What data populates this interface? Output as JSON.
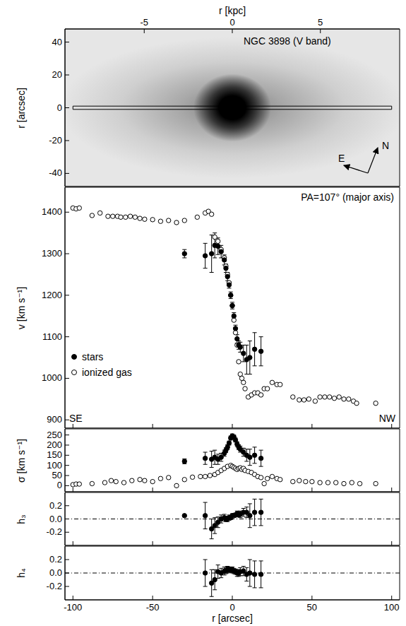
{
  "chart_data": [
    {
      "type": "image",
      "title": "NGC 3898 (V band)",
      "y_label": "r [arcsec]",
      "x2_label": "r [kpc]",
      "xlim": [
        -105,
        105
      ],
      "x2lim": [
        -9.5,
        9.5
      ],
      "x2ticks": [
        -5,
        0,
        5
      ],
      "ylim": [
        -48,
        48
      ],
      "yticks": [
        -40,
        -20,
        0,
        20,
        40
      ],
      "slit": {
        "x": [
          -100,
          100
        ],
        "y": [
          -1,
          1
        ]
      },
      "annotations": [
        "N",
        "E"
      ]
    },
    {
      "type": "scatter",
      "y_label": "v [km s⁻¹]",
      "annotations": [
        "PA=107° (major axis)",
        "SE",
        "NW"
      ],
      "xlim": [
        -105,
        105
      ],
      "xticks": [
        -100,
        -50,
        0,
        50,
        100
      ],
      "ylim": [
        880,
        1460
      ],
      "yticks": [
        900,
        1000,
        1100,
        1200,
        1300,
        1400
      ],
      "tick_labels": "y",
      "legend": "lower left",
      "series": [
        {
          "name": "stars",
          "marker": "filled_circle",
          "color": "#000000",
          "x": [
            -30,
            -17,
            -13,
            -11,
            -9,
            -7,
            -5,
            -4,
            -3,
            -2,
            -1,
            0,
            1,
            2,
            3,
            4,
            5,
            7,
            9,
            11,
            14,
            18
          ],
          "values": [
            1300,
            1295,
            1300,
            1320,
            1318,
            1305,
            1285,
            1265,
            1245,
            1225,
            1200,
            1175,
            1150,
            1120,
            1095,
            1080,
            1075,
            1060,
            1045,
            1050,
            1070,
            1065
          ],
          "errors": [
            10,
            30,
            45,
            30,
            20,
            15,
            12,
            10,
            10,
            8,
            8,
            8,
            8,
            8,
            10,
            10,
            12,
            20,
            35,
            40,
            40,
            35
          ]
        },
        {
          "name": "ionized gas",
          "marker": "open_circle",
          "color": "#000000",
          "x": [
            -100,
            -98,
            -96,
            -88,
            -83,
            -78,
            -75,
            -72,
            -70,
            -67,
            -64,
            -61,
            -58,
            -55,
            -50,
            -45,
            -40,
            -35,
            -30,
            -22,
            -17,
            -15,
            -13,
            -11,
            -9,
            -7,
            -5,
            -4,
            -3,
            -2,
            -1,
            0,
            1,
            2,
            3,
            4,
            5,
            6,
            7,
            8,
            10,
            12,
            14,
            16,
            18,
            20,
            22,
            25,
            28,
            30,
            38,
            42,
            45,
            48,
            52,
            55,
            58,
            61,
            64,
            67,
            70,
            73,
            76,
            78,
            90
          ],
          "values": [
            1410,
            1408,
            1410,
            1392,
            1398,
            1390,
            1390,
            1390,
            1388,
            1388,
            1390,
            1388,
            1385,
            1383,
            1382,
            1378,
            1380,
            1375,
            1380,
            1388,
            1398,
            1402,
            1395,
            1340,
            1330,
            1310,
            1290,
            1270,
            1250,
            1230,
            1200,
            1175,
            1140,
            1110,
            1080,
            1040,
            1010,
            1000,
            990,
            975,
            955,
            960,
            965,
            965,
            960,
            975,
            975,
            990,
            985,
            985,
            955,
            948,
            948,
            950,
            945,
            955,
            955,
            955,
            952,
            955,
            950,
            950,
            945,
            940,
            940
          ]
        }
      ]
    },
    {
      "type": "scatter",
      "y_label": "σ [km s⁻¹]",
      "xlim": [
        -105,
        105
      ],
      "xticks": [
        -100,
        -50,
        0,
        50,
        100
      ],
      "ylim": [
        -30,
        280
      ],
      "yticks": [
        0,
        50,
        100,
        150,
        200,
        250
      ],
      "tick_labels": "y",
      "series": [
        {
          "name": "stars",
          "marker": "filled_circle",
          "color": "#000000",
          "x": [
            -30,
            -17,
            -13,
            -11,
            -9,
            -7,
            -5,
            -4,
            -3,
            -2,
            -1,
            0,
            1,
            2,
            3,
            4,
            5,
            7,
            9,
            11,
            14,
            18
          ],
          "values": [
            120,
            135,
            130,
            140,
            130,
            140,
            160,
            175,
            190,
            210,
            235,
            245,
            240,
            225,
            205,
            190,
            180,
            165,
            150,
            140,
            150,
            135
          ],
          "errors": [
            12,
            30,
            40,
            35,
            25,
            20,
            15,
            12,
            12,
            10,
            10,
            10,
            10,
            10,
            12,
            12,
            15,
            20,
            30,
            40,
            40,
            40
          ]
        },
        {
          "name": "ionized gas",
          "marker": "open_circle",
          "color": "#000000",
          "x": [
            -100,
            -98,
            -96,
            -88,
            -80,
            -76,
            -73,
            -68,
            -63,
            -58,
            -55,
            -50,
            -45,
            -40,
            -35,
            -30,
            -25,
            -20,
            -17,
            -14,
            -11,
            -9,
            -7,
            -5,
            -3,
            -1,
            0,
            1,
            2,
            3,
            4,
            5,
            6,
            7,
            8,
            10,
            12,
            14,
            16,
            18,
            20,
            22,
            25,
            28,
            30,
            38,
            42,
            46,
            50,
            55,
            60,
            65,
            70,
            75,
            80,
            90
          ],
          "values": [
            5,
            8,
            8,
            10,
            15,
            25,
            20,
            15,
            25,
            30,
            25,
            20,
            35,
            40,
            0,
            30,
            42,
            45,
            45,
            50,
            55,
            65,
            75,
            85,
            95,
            100,
            95,
            90,
            85,
            80,
            85,
            88,
            80,
            85,
            75,
            70,
            65,
            55,
            45,
            40,
            10,
            35,
            45,
            35,
            30,
            20,
            25,
            20,
            20,
            15,
            15,
            15,
            10,
            15,
            10,
            10
          ]
        }
      ]
    },
    {
      "type": "scatter",
      "y_label": "h₃",
      "xlim": [
        -105,
        105
      ],
      "xticks": [
        -100,
        -50,
        0,
        50,
        100
      ],
      "ylim": [
        -0.4,
        0.4
      ],
      "yticks": [
        -0.2,
        {
          "value": 0,
          "label": "0.0"
        },
        0.2
      ],
      "tick_labels": "y",
      "reference_y": 0,
      "line_style": "dashdot",
      "series": [
        {
          "name": "stars",
          "marker": "filled_circle",
          "color": "#000000",
          "x": [
            -30,
            -17,
            -13,
            -11,
            -9,
            -7,
            -5,
            -4,
            -3,
            -2,
            -1,
            0,
            1,
            2,
            3,
            4,
            5,
            7,
            9,
            11,
            14,
            18
          ],
          "values": [
            0.05,
            0.05,
            -0.15,
            -0.1,
            -0.05,
            0.0,
            0.02,
            0.0,
            0.0,
            0.02,
            0.02,
            0.05,
            0.05,
            0.06,
            0.08,
            0.07,
            0.07,
            0.1,
            0.1,
            0.05,
            0.1,
            0.1
          ],
          "errors": [
            0.01,
            0.2,
            0.15,
            0.12,
            0.08,
            0.06,
            0.05,
            0.04,
            0.04,
            0.04,
            0.03,
            0.03,
            0.03,
            0.03,
            0.04,
            0.04,
            0.05,
            0.06,
            0.08,
            0.18,
            0.2,
            0.2
          ]
        }
      ]
    },
    {
      "type": "scatter",
      "y_label": "h₄",
      "x_label": "r [arcsec]",
      "xlim": [
        -105,
        105
      ],
      "xticks": [
        -100,
        -50,
        0,
        50,
        100
      ],
      "ylim": [
        -0.4,
        0.4
      ],
      "yticks": [
        -0.2,
        {
          "value": 0,
          "label": "0.0"
        },
        0.2
      ],
      "reference_y": 0,
      "line_style": "dashdot",
      "series": [
        {
          "name": "stars",
          "marker": "filled_circle",
          "color": "#000000",
          "x": [
            -17,
            -13,
            -11,
            -9,
            -7,
            -5,
            -4,
            -3,
            -2,
            -1,
            0,
            1,
            2,
            3,
            4,
            5,
            7,
            9,
            11,
            14,
            18
          ],
          "values": [
            0.0,
            -0.15,
            -0.1,
            0.02,
            0.0,
            0.03,
            0.04,
            0.05,
            0.05,
            0.05,
            0.05,
            0.03,
            0.02,
            0.0,
            0.0,
            0.02,
            0.03,
            -0.02,
            0.0,
            -0.02,
            -0.02
          ],
          "errors": [
            0.2,
            0.2,
            0.15,
            0.1,
            0.07,
            0.06,
            0.05,
            0.05,
            0.04,
            0.04,
            0.04,
            0.04,
            0.04,
            0.05,
            0.05,
            0.06,
            0.07,
            0.1,
            0.2,
            0.2,
            0.2
          ]
        }
      ]
    }
  ]
}
